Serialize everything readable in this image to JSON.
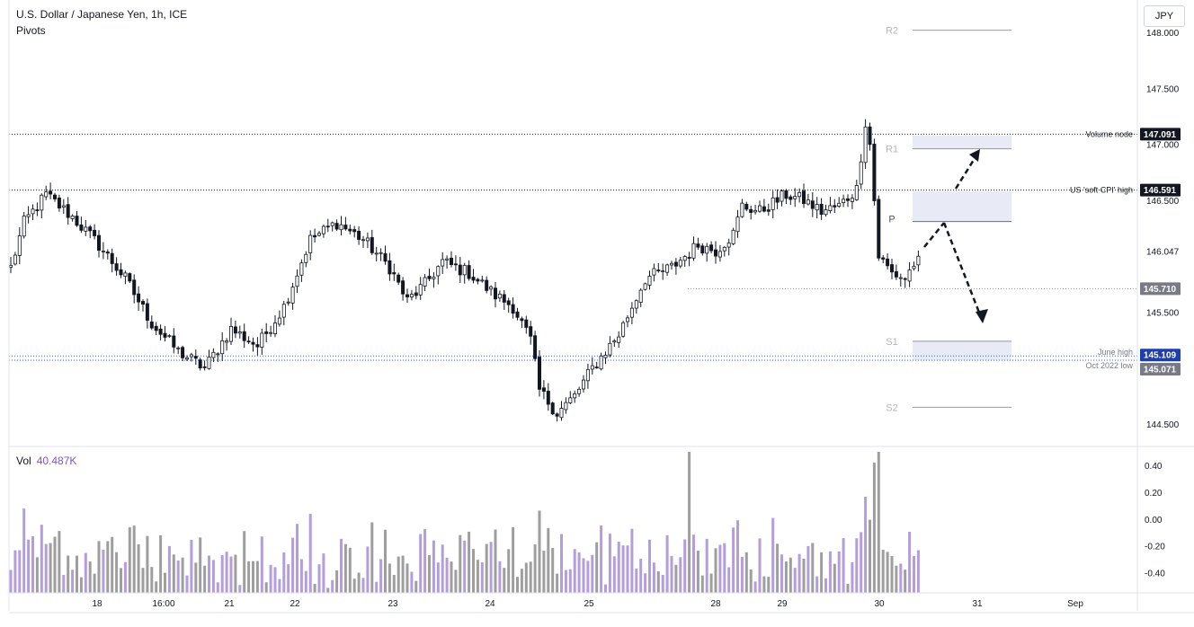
{
  "header": {
    "title": "U.S. Dollar / Japanese Yen, 1h, ICE",
    "subtitle": "Pivots",
    "currency_button": "JPY"
  },
  "volume": {
    "label": "Vol",
    "value": "40.487K"
  },
  "colors": {
    "up_candle": "#ffffff",
    "down_candle": "#131722",
    "vol_up": "#b39ddb",
    "vol_down": "#9e9e9e",
    "pivot_zone": "#e8eaf6",
    "pivot_line": "#9598a1",
    "level_line": "#131722",
    "blue_level": "#2962ff",
    "price_tag_dark": "#131722",
    "price_tag_blue": "#1e3fa8",
    "price_tag_gray": "#787b86"
  },
  "chart_data": {
    "type": "candlestick",
    "title": "U.S. Dollar / Japanese Yen, 1h, ICE",
    "ylim": [
      144.3,
      148.25
    ],
    "y_ticks": [
      "148.000",
      "147.500",
      "147.000",
      "146.500",
      "146.047",
      "145.500",
      "144.500"
    ],
    "x_ticks": [
      "18",
      "16:00",
      "21",
      "22",
      "23",
      "24",
      "25",
      "28",
      "29",
      "30",
      "31",
      "Sep"
    ],
    "anchors": [
      [
        0,
        145.9
      ],
      [
        3,
        146.3
      ],
      [
        8,
        146.55
      ],
      [
        14,
        146.35
      ],
      [
        20,
        146.1
      ],
      [
        26,
        145.8
      ],
      [
        32,
        145.4
      ],
      [
        38,
        145.15
      ],
      [
        44,
        145.0
      ],
      [
        50,
        145.35
      ],
      [
        56,
        145.2
      ],
      [
        62,
        145.55
      ],
      [
        68,
        146.15
      ],
      [
        74,
        146.3
      ],
      [
        80,
        146.15
      ],
      [
        86,
        145.9
      ],
      [
        90,
        145.6
      ],
      [
        94,
        145.75
      ],
      [
        98,
        145.95
      ],
      [
        104,
        145.85
      ],
      [
        110,
        145.65
      ],
      [
        114,
        145.55
      ],
      [
        118,
        145.25
      ],
      [
        120,
        144.8
      ],
      [
        124,
        144.6
      ],
      [
        128,
        144.75
      ],
      [
        132,
        145.0
      ],
      [
        138,
        145.3
      ],
      [
        144,
        145.8
      ],
      [
        150,
        145.9
      ],
      [
        156,
        146.1
      ],
      [
        160,
        146.05
      ],
      [
        164,
        146.2
      ],
      [
        166,
        146.45
      ],
      [
        170,
        146.4
      ],
      [
        176,
        146.55
      ],
      [
        180,
        146.5
      ],
      [
        184,
        146.4
      ],
      [
        188,
        146.45
      ],
      [
        192,
        146.6
      ],
      [
        194,
        147.2
      ],
      [
        195,
        147.0
      ],
      [
        197,
        146.0
      ],
      [
        200,
        145.85
      ],
      [
        203,
        145.8
      ],
      [
        206,
        146.0
      ]
    ],
    "levels": [
      {
        "name": "Volume node",
        "value": 147.091,
        "tag": "147.091"
      },
      {
        "name": "US 'soft CPI' high",
        "value": 146.591,
        "tag": "146.591"
      },
      {
        "name": "",
        "value": 145.71,
        "tag": "145.710"
      },
      {
        "name": "June high",
        "value": 145.109,
        "tag": "145.109"
      },
      {
        "name": "Oct 2022 low",
        "value": 145.071,
        "tag": "145.071"
      }
    ],
    "pivots": [
      {
        "name": "R2",
        "value": 148.02
      },
      {
        "name": "R1",
        "value": 146.96
      },
      {
        "name": "P",
        "value": 146.31
      },
      {
        "name": "S1",
        "value": 145.24
      },
      {
        "name": "S2",
        "value": 144.65
      }
    ],
    "pivot_zones": [
      {
        "from": 146.96,
        "to": 147.08
      },
      {
        "from": 146.31,
        "to": 146.58
      },
      {
        "from": 145.07,
        "to": 145.24
      }
    ],
    "volume_axis": {
      "ylim": [
        -0.55,
        0.52
      ],
      "ticks": [
        "0.40",
        "0.20",
        "0.00",
        "-0.20",
        "-0.40"
      ]
    }
  }
}
